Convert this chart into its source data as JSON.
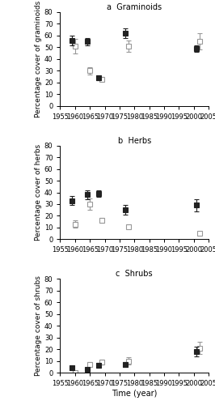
{
  "panels": [
    {
      "title": "a  Graminoids",
      "ylabel": "Percentage cover of graminoids",
      "ylim": [
        0,
        80
      ],
      "yticks": [
        0,
        10,
        20,
        30,
        40,
        50,
        60,
        70,
        80
      ],
      "kosciuszko": {
        "years": [
          1959,
          1964,
          1968,
          1977,
          2001
        ],
        "means": [
          56,
          55,
          24,
          62,
          49
        ],
        "se": [
          4,
          3,
          2,
          4,
          3
        ]
      },
      "gungartan": {
        "years": [
          1960,
          1965,
          1969,
          1978,
          2002
        ],
        "means": [
          51,
          30,
          23,
          51,
          55
        ],
        "se": [
          6,
          3,
          2,
          5,
          7
        ]
      }
    },
    {
      "title": "b  Herbs",
      "ylabel": "Percentage cover of herbs",
      "ylim": [
        0,
        80
      ],
      "yticks": [
        0,
        10,
        20,
        30,
        40,
        50,
        60,
        70,
        80
      ],
      "kosciuszko": {
        "years": [
          1959,
          1964,
          1968,
          1977,
          2001
        ],
        "means": [
          33,
          38,
          39,
          25,
          29
        ],
        "se": [
          4,
          4,
          3,
          4,
          5
        ]
      },
      "gungartan": {
        "years": [
          1960,
          1965,
          1969,
          1978,
          2002
        ],
        "means": [
          13,
          30,
          16,
          11,
          5
        ],
        "se": [
          3,
          5,
          2,
          2,
          1
        ]
      }
    },
    {
      "title": "c  Shrubs",
      "ylabel": "Percentage cover of shrubs",
      "ylim": [
        0,
        80
      ],
      "yticks": [
        0,
        10,
        20,
        30,
        40,
        50,
        60,
        70,
        80
      ],
      "xlabel": "Time (year)",
      "kosciuszko": {
        "years": [
          1959,
          1964,
          1968,
          1977,
          2001
        ],
        "means": [
          4,
          3,
          6,
          7,
          18
        ],
        "se": [
          2,
          1,
          2,
          2,
          4
        ]
      },
      "gungartan": {
        "years": [
          1960,
          1965,
          1969,
          1978,
          2002
        ],
        "means": [
          0,
          7,
          9,
          10,
          21
        ],
        "se": [
          0.5,
          2,
          2,
          3,
          5
        ]
      }
    }
  ],
  "xlim": [
    1955,
    2005
  ],
  "xticks": [
    1955,
    1960,
    1965,
    1970,
    1975,
    1980,
    1985,
    1990,
    1995,
    2000,
    2005
  ],
  "kosciuszko_color": "#222222",
  "gungartan_color": "#999999",
  "markersize": 5,
  "capsize": 2,
  "elinewidth": 0.8,
  "capthick": 0.8,
  "title_fontsize": 7,
  "label_fontsize": 6.5,
  "tick_fontsize": 6
}
